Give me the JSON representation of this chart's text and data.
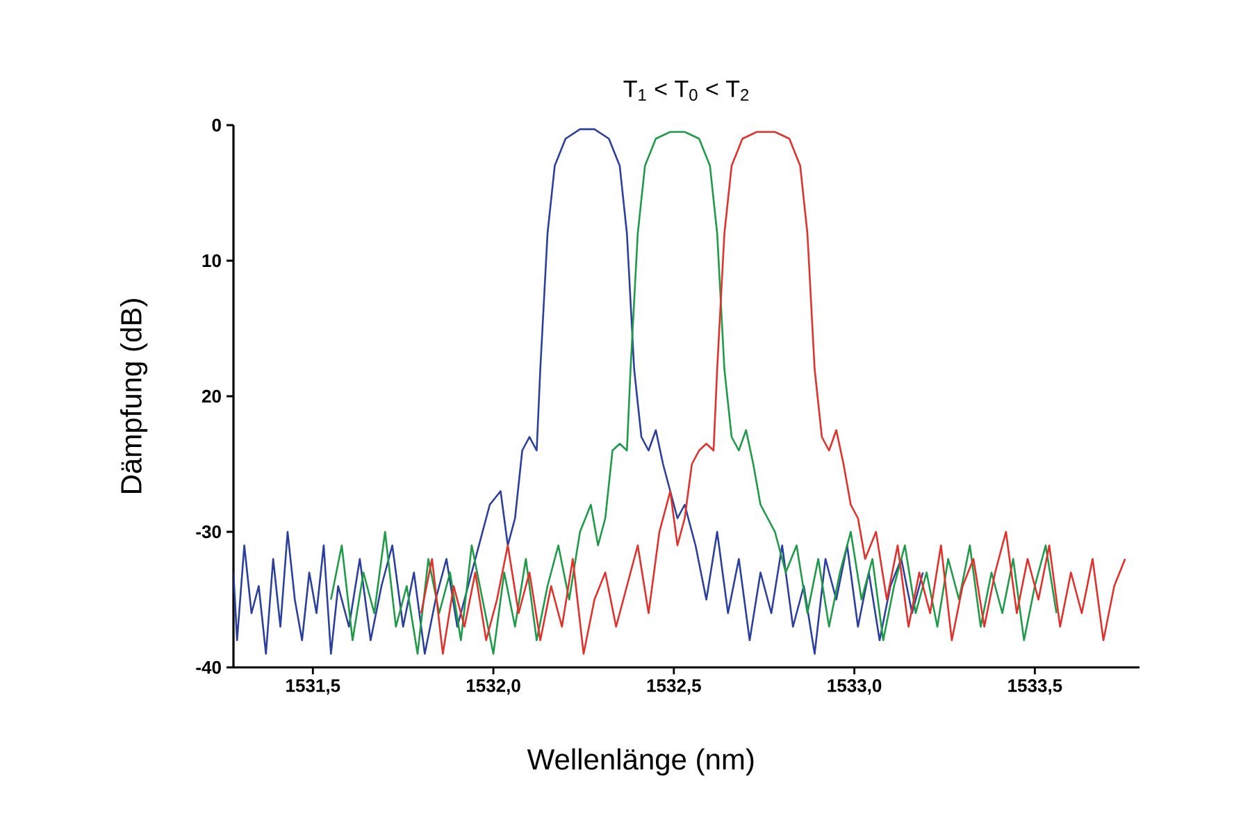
{
  "chart_data": {
    "type": "line",
    "title": "T$_{1}$ < T$_{0}$ < T$_{2}$",
    "xlabel": "Wellenlänge (nm)",
    "ylabel": "Dämpfung (dB)",
    "xlim": [
      1531.28,
      1533.79
    ],
    "ylim": [
      -40,
      0
    ],
    "xticks": [
      {
        "value": 1531.5,
        "label": "1531,5"
      },
      {
        "value": 1532.0,
        "label": "1532,0"
      },
      {
        "value": 1532.5,
        "label": "1532,5"
      },
      {
        "value": 1533.0,
        "label": "1533,0"
      },
      {
        "value": 1533.5,
        "label": "1533,5"
      }
    ],
    "yticks": [
      0,
      {
        "value": -10,
        "label": "10"
      },
      {
        "value": -20,
        "label": "20"
      },
      -30,
      -40
    ],
    "marker": "none",
    "line_style": "solid",
    "series": [
      {
        "color": "#2b3f9e",
        "x": [
          1531.28,
          1531.29,
          1531.31,
          1531.33,
          1531.35,
          1531.37,
          1531.39,
          1531.41,
          1531.43,
          1531.45,
          1531.47,
          1531.49,
          1531.51,
          1531.53,
          1531.55,
          1531.57,
          1531.6,
          1531.63,
          1531.66,
          1531.69,
          1531.72,
          1531.75,
          1531.78,
          1531.81,
          1531.84,
          1531.87,
          1531.9,
          1531.93,
          1531.96,
          1531.99,
          1532.02,
          1532.04,
          1532.06,
          1532.08,
          1532.1,
          1532.12,
          1532.13,
          1532.15,
          1532.17,
          1532.2,
          1532.24,
          1532.28,
          1532.32,
          1532.35,
          1532.37,
          1532.39,
          1532.41,
          1532.43,
          1532.45,
          1532.47,
          1532.49,
          1532.51,
          1532.53,
          1532.56,
          1532.59,
          1532.62,
          1532.65,
          1532.68,
          1532.71,
          1532.74,
          1532.77,
          1532.8,
          1532.83,
          1532.86,
          1532.89,
          1532.92,
          1532.95,
          1532.98,
          1533.01,
          1533.04,
          1533.07,
          1533.1,
          1533.13,
          1533.16,
          1533.19
        ],
        "values": [
          -33,
          -38,
          -31,
          -36,
          -34,
          -39,
          -32,
          -37,
          -30,
          -35,
          -38,
          -33,
          -36,
          -31,
          -39,
          -34,
          -37,
          -32,
          -38,
          -34,
          -31,
          -37,
          -33,
          -39,
          -35,
          -32,
          -37,
          -34,
          -31,
          -28,
          -27,
          -31,
          -29,
          -24,
          -23,
          -24,
          -18,
          -8,
          -3,
          -1,
          -0.3,
          -0.3,
          -1,
          -3,
          -8,
          -18,
          -23,
          -24,
          -22.5,
          -25,
          -27,
          -29,
          -28,
          -31,
          -35,
          -30,
          -36,
          -32,
          -38,
          -33,
          -36,
          -31,
          -37,
          -34,
          -39,
          -32,
          -35,
          -31,
          -37,
          -33,
          -38,
          -34,
          -32,
          -36,
          -33
        ]
      },
      {
        "color": "#1f9a48",
        "x": [
          1531.55,
          1531.58,
          1531.61,
          1531.64,
          1531.67,
          1531.7,
          1531.73,
          1531.76,
          1531.79,
          1531.82,
          1531.85,
          1531.88,
          1531.91,
          1531.94,
          1531.97,
          1532.0,
          1532.03,
          1532.06,
          1532.09,
          1532.12,
          1532.15,
          1532.18,
          1532.21,
          1532.24,
          1532.27,
          1532.29,
          1532.31,
          1532.33,
          1532.35,
          1532.37,
          1532.38,
          1532.4,
          1532.42,
          1532.45,
          1532.49,
          1532.53,
          1532.57,
          1532.6,
          1532.62,
          1532.64,
          1532.66,
          1532.68,
          1532.7,
          1532.72,
          1532.74,
          1532.76,
          1532.78,
          1532.81,
          1532.84,
          1532.87,
          1532.9,
          1532.93,
          1532.96,
          1532.99,
          1533.02,
          1533.05,
          1533.08,
          1533.11,
          1533.14,
          1533.17,
          1533.2,
          1533.23,
          1533.26,
          1533.29,
          1533.32,
          1533.35,
          1533.38,
          1533.41,
          1533.44,
          1533.47,
          1533.5,
          1533.53,
          1533.56
        ],
        "values": [
          -35,
          -31,
          -38,
          -33,
          -36,
          -30,
          -37,
          -34,
          -39,
          -32,
          -36,
          -33,
          -38,
          -31,
          -35,
          -39,
          -33,
          -37,
          -32,
          -38,
          -34,
          -31,
          -35,
          -30,
          -28,
          -31,
          -29,
          -24,
          -23.5,
          -24,
          -18,
          -8,
          -3,
          -1,
          -0.5,
          -0.5,
          -1,
          -3,
          -8,
          -18,
          -23,
          -24,
          -22.5,
          -25,
          -28,
          -29,
          -30,
          -33,
          -31,
          -36,
          -32,
          -37,
          -33,
          -30,
          -35,
          -32,
          -38,
          -34,
          -31,
          -36,
          -33,
          -37,
          -32,
          -35,
          -31,
          -37,
          -33,
          -36,
          -32,
          -38,
          -34,
          -31,
          -36
        ]
      },
      {
        "color": "#e0322b",
        "x": [
          1531.8,
          1531.83,
          1531.86,
          1531.89,
          1531.92,
          1531.95,
          1531.98,
          1532.01,
          1532.04,
          1532.07,
          1532.1,
          1532.13,
          1532.16,
          1532.19,
          1532.22,
          1532.25,
          1532.28,
          1532.31,
          1532.34,
          1532.37,
          1532.4,
          1532.43,
          1532.46,
          1532.49,
          1532.51,
          1532.53,
          1532.55,
          1532.57,
          1532.59,
          1532.61,
          1532.62,
          1532.64,
          1532.66,
          1532.69,
          1532.73,
          1532.78,
          1532.82,
          1532.85,
          1532.87,
          1532.89,
          1532.91,
          1532.93,
          1532.95,
          1532.97,
          1532.99,
          1533.01,
          1533.03,
          1533.06,
          1533.09,
          1533.12,
          1533.15,
          1533.18,
          1533.21,
          1533.24,
          1533.27,
          1533.3,
          1533.33,
          1533.36,
          1533.39,
          1533.42,
          1533.45,
          1533.48,
          1533.51,
          1533.54,
          1533.57,
          1533.6,
          1533.63,
          1533.66,
          1533.69,
          1533.72,
          1533.75
        ],
        "values": [
          -36,
          -32,
          -39,
          -34,
          -37,
          -33,
          -38,
          -35,
          -31,
          -36,
          -33,
          -38,
          -34,
          -37,
          -32,
          -39,
          -35,
          -33,
          -37,
          -34,
          -31,
          -36,
          -30,
          -27,
          -31,
          -29,
          -25,
          -24,
          -23.5,
          -24,
          -18,
          -8,
          -3,
          -1,
          -0.5,
          -0.5,
          -1,
          -3,
          -8,
          -18,
          -23,
          -24,
          -22.5,
          -25,
          -28,
          -29,
          -32,
          -30,
          -35,
          -31,
          -37,
          -33,
          -36,
          -31,
          -38,
          -34,
          -32,
          -37,
          -33,
          -30,
          -36,
          -32,
          -35,
          -31,
          -37,
          -33,
          -36,
          -32,
          -38,
          -34,
          -32
        ]
      }
    ]
  }
}
